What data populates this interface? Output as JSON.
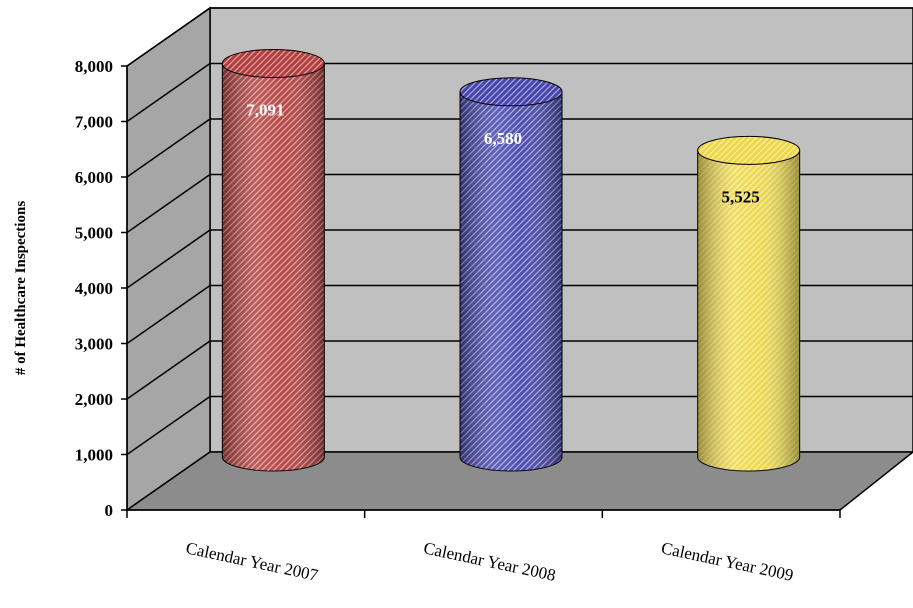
{
  "chart_data": {
    "type": "bar",
    "title": "",
    "xlabel": "",
    "ylabel": "# of Healthcare Inspections",
    "categories": [
      "Calendar Year 2007",
      "Calendar Year 2008",
      "Calendar Year 2009"
    ],
    "values": [
      7091,
      6580,
      5525
    ],
    "data_labels": [
      "7,091",
      "6,580",
      "5,525"
    ],
    "ylim": [
      0,
      8000
    ],
    "yticks": [
      0,
      1000,
      2000,
      3000,
      4000,
      5000,
      6000,
      7000,
      8000
    ],
    "ytick_labels": [
      "0",
      "1,000",
      "2,000",
      "3,000",
      "4,000",
      "5,000",
      "6,000",
      "7,000",
      "8,000"
    ],
    "grid": true,
    "legend": "none",
    "style": "3d-cylinder",
    "bar_colors": [
      "#c0504d",
      "#4f4fb0",
      "#f0dc50"
    ],
    "data_label_colors": [
      "#ffffff",
      "#ffffff",
      "#000000"
    ]
  }
}
